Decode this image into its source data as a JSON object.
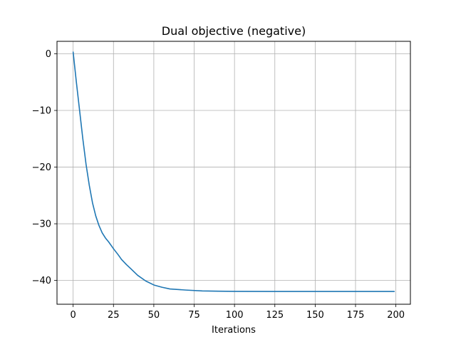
{
  "chart_data": {
    "type": "line",
    "title": "Dual objective (negative)",
    "xlabel": "Iterations",
    "ylabel": "",
    "xlim": [
      -10,
      209
    ],
    "ylim": [
      -44.2,
      2.2
    ],
    "grid": true,
    "legend": null,
    "x_ticks": [
      0,
      25,
      50,
      75,
      100,
      125,
      150,
      175,
      200
    ],
    "y_ticks": [
      0,
      -10,
      -20,
      -30,
      -40
    ],
    "x_tick_labels": [
      "0",
      "25",
      "50",
      "75",
      "100",
      "125",
      "150",
      "175",
      "200"
    ],
    "y_tick_labels": [
      "0",
      "−10",
      "−20",
      "−30",
      "−40"
    ],
    "colors": {
      "line": "#1f77b4",
      "grid": "#b0b0b0",
      "frame": "#000000"
    },
    "series": [
      {
        "x": [
          0,
          2,
          4,
          6,
          8,
          10,
          12,
          14,
          16,
          18,
          20,
          22,
          25,
          28,
          30,
          33,
          36,
          40,
          45,
          50,
          55,
          60,
          70,
          80,
          90,
          100,
          125,
          150,
          175,
          199
        ],
        "y": [
          0.3,
          -5.0,
          -10.0,
          -15.0,
          -19.5,
          -23.2,
          -26.3,
          -28.6,
          -30.3,
          -31.6,
          -32.5,
          -33.2,
          -34.4,
          -35.5,
          -36.3,
          -37.2,
          -38.0,
          -39.1,
          -40.1,
          -40.8,
          -41.2,
          -41.5,
          -41.7,
          -41.85,
          -41.9,
          -41.93,
          -41.95,
          -41.95,
          -41.95,
          -41.95
        ]
      }
    ]
  }
}
